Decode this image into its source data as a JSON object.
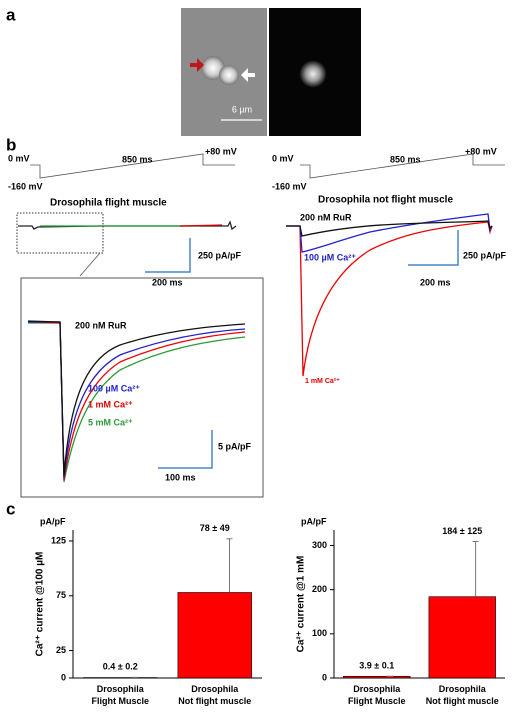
{
  "panel_labels": [
    "a",
    "b",
    "c"
  ],
  "panel_a": {
    "scale_bar": "6 µm"
  },
  "panel_b": {
    "left": {
      "v0": "0 mV",
      "vmin": "-160 mV",
      "duration": "850 ms",
      "vmax": "+80 mV",
      "title": "Drosophila  flight muscle",
      "scale_y": "250 pA/pF",
      "scale_x": "200 ms",
      "inset": {
        "rur": "200 nM  RuR",
        "ca100": "100 µM  Ca²⁺",
        "ca1": "1 mM Ca²⁺",
        "ca5": "5 mM  Ca²⁺",
        "scale_y": "5 pA/pF",
        "scale_x": "100 ms"
      }
    },
    "right": {
      "v0": "0 mV",
      "vmin": "-160 mV",
      "duration": "850 ms",
      "vmax": "+80 mV",
      "title": "Drosophila not flight muscle",
      "rur": "200 nM  RuR",
      "ca100": "100 µM  Ca²⁺",
      "ca1": "1 mM Ca²⁺",
      "scale_y": "250 pA/pF",
      "scale_x": "200 ms"
    }
  },
  "chart_data": [
    {
      "type": "bar",
      "unit_label": "pA/pF",
      "y_label": "Ca²⁺ current @100 µM",
      "categories": [
        "Drosophila Flight Muscle",
        "Drosophila Not flight muscle"
      ],
      "series": [
        {
          "name": "Ca²⁺ current",
          "color": "#ff0000",
          "values": [
            0.4,
            78
          ],
          "errors": [
            0.2,
            49
          ],
          "value_labels": [
            "0.4 ± 0.2",
            "78 ± 49"
          ]
        }
      ],
      "ylim": [
        0,
        135
      ],
      "yticks": [
        0,
        25,
        75,
        125
      ]
    },
    {
      "type": "bar",
      "unit_label": "pA/pF",
      "y_label": "Ca²⁺ current @1 mM",
      "categories": [
        "Drosophila Flight Muscle",
        "Drosophila Not flight muscle"
      ],
      "series": [
        {
          "name": "Ca²⁺ current",
          "color": "#ff0000",
          "values": [
            3.9,
            184
          ],
          "errors": [
            0.1,
            125
          ],
          "value_labels": [
            "3.9 ± 0.1",
            "184 ± 125"
          ]
        }
      ],
      "ylim": [
        0,
        335
      ],
      "yticks": [
        0,
        100,
        200,
        300
      ]
    }
  ]
}
